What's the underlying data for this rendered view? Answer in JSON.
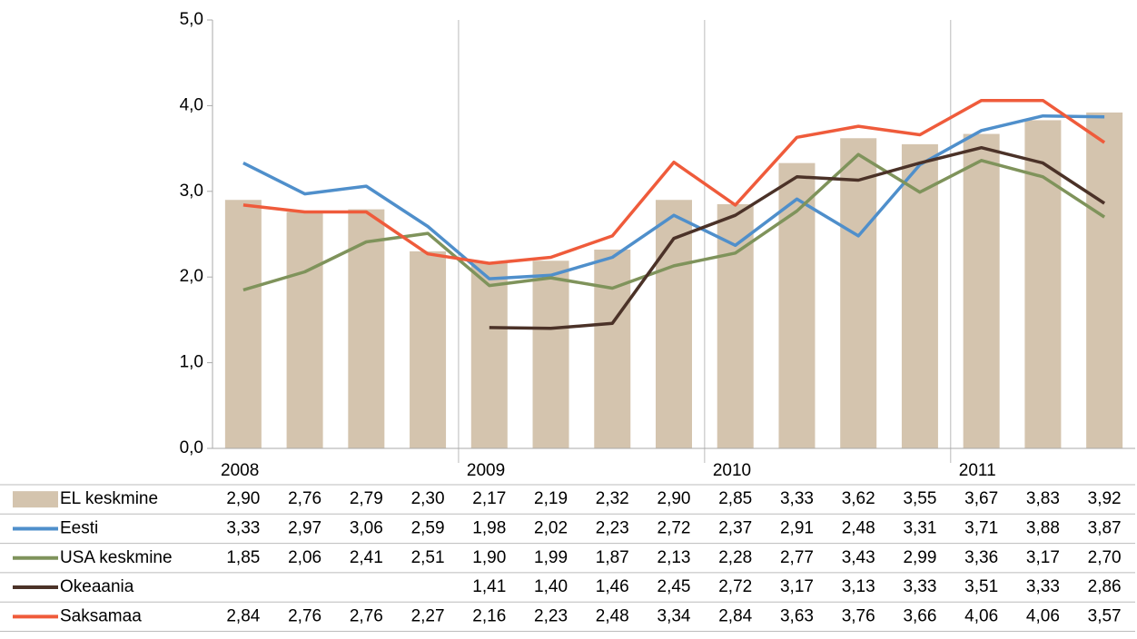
{
  "chart_data": {
    "type": "combo",
    "categories": [
      "2008",
      null,
      null,
      null,
      "2009",
      null,
      null,
      null,
      "2010",
      null,
      null,
      null,
      "2011",
      null,
      null
    ],
    "ylim": [
      0,
      5
    ],
    "yticks": [
      {
        "value": 0,
        "label": "0,0"
      },
      {
        "value": 1,
        "label": "1,0"
      },
      {
        "value": 2,
        "label": "2,0"
      },
      {
        "value": 3,
        "label": "3,0"
      },
      {
        "value": 4,
        "label": "4,0"
      },
      {
        "value": 5,
        "label": "5,0"
      }
    ],
    "series": [
      {
        "name": "EL keskmine",
        "type": "bar",
        "color": "#d4c4ae",
        "values": [
          2.9,
          2.76,
          2.79,
          2.3,
          2.17,
          2.19,
          2.32,
          2.9,
          2.85,
          3.33,
          3.62,
          3.55,
          3.67,
          3.83,
          3.92
        ],
        "value_labels": [
          "2,90",
          "2,76",
          "2,79",
          "2,30",
          "2,17",
          "2,19",
          "2,32",
          "2,90",
          "2,85",
          "3,33",
          "3,62",
          "3,55",
          "3,67",
          "3,83",
          "3,92"
        ]
      },
      {
        "name": "Eesti",
        "type": "line",
        "color": "#4f8fcb",
        "values": [
          3.33,
          2.97,
          3.06,
          2.59,
          1.98,
          2.02,
          2.23,
          2.72,
          2.37,
          2.91,
          2.48,
          3.31,
          3.71,
          3.88,
          3.87
        ],
        "value_labels": [
          "3,33",
          "2,97",
          "3,06",
          "2,59",
          "1,98",
          "2,02",
          "2,23",
          "2,72",
          "2,37",
          "2,91",
          "2,48",
          "3,31",
          "3,71",
          "3,88",
          "3,87"
        ]
      },
      {
        "name": "USA keskmine",
        "type": "line",
        "color": "#7f935b",
        "values": [
          1.85,
          2.06,
          2.41,
          2.51,
          1.9,
          1.99,
          1.87,
          2.13,
          2.28,
          2.77,
          3.43,
          2.99,
          3.36,
          3.17,
          2.7
        ],
        "value_labels": [
          "1,85",
          "2,06",
          "2,41",
          "2,51",
          "1,90",
          "1,99",
          "1,87",
          "2,13",
          "2,28",
          "2,77",
          "3,43",
          "2,99",
          "3,36",
          "3,17",
          "2,70"
        ]
      },
      {
        "name": "Okeaania",
        "type": "line",
        "color": "#4b3228",
        "values": [
          null,
          null,
          null,
          null,
          1.41,
          1.4,
          1.46,
          2.45,
          2.72,
          3.17,
          3.13,
          3.33,
          3.51,
          3.33,
          2.86
        ],
        "value_labels": [
          null,
          null,
          null,
          null,
          "1,41",
          "1,40",
          "1,46",
          "2,45",
          "2,72",
          "3,17",
          "3,13",
          "3,33",
          "3,51",
          "3,33",
          "2,86"
        ]
      },
      {
        "name": "Saksamaa",
        "type": "line",
        "color": "#ef5b3b",
        "values": [
          2.84,
          2.76,
          2.76,
          2.27,
          2.16,
          2.23,
          2.48,
          3.34,
          2.84,
          3.63,
          3.76,
          3.66,
          4.06,
          4.06,
          3.57
        ],
        "value_labels": [
          "2,84",
          "2,76",
          "2,76",
          "2,27",
          "2,16",
          "2,23",
          "2,48",
          "3,34",
          "2,84",
          "3,63",
          "3,76",
          "3,66",
          "4,06",
          "4,06",
          "3,57"
        ]
      }
    ]
  }
}
